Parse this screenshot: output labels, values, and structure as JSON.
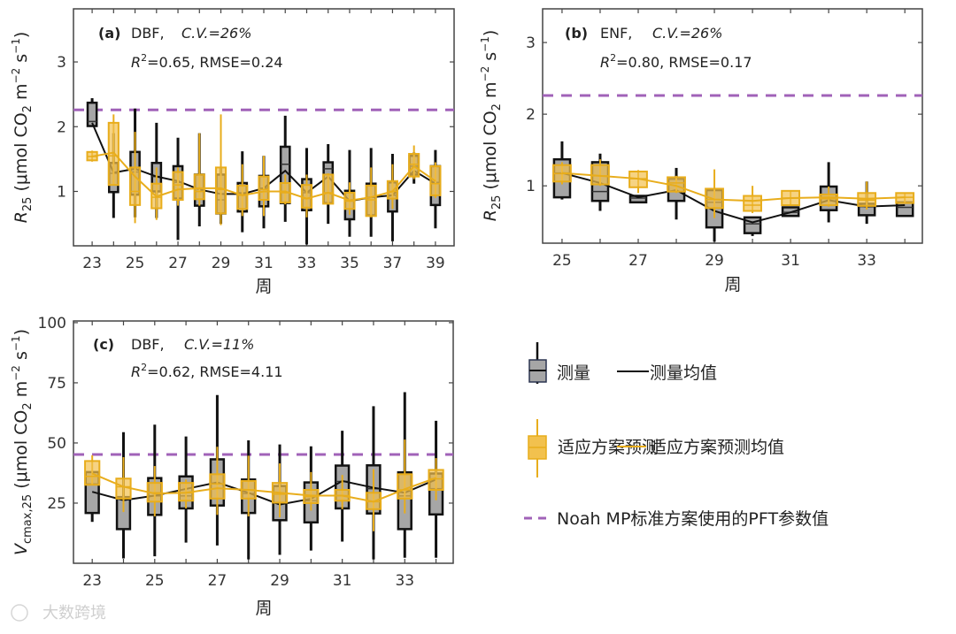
{
  "colors": {
    "measured_box": "#a6a6a6",
    "measured_line": "#111111",
    "predicted_box": "#f2c14e",
    "predicted_line": "#e8ad1c",
    "pft_dash": "#a062b8"
  },
  "watermark": "大数跨境",
  "legend": {
    "measured": "测量",
    "measured_mean": "测量均值",
    "predicted": "适应方案预测",
    "predicted_mean": "适应方案预测均值",
    "pft": "Noah MP标准方案使用的PFT参数值"
  },
  "chart_data": [
    {
      "id": "a",
      "type": "box",
      "panel_label": "(a)",
      "pft_type": "DBF,",
      "cv": "C.V.=26%",
      "r2_label": "R",
      "r2_sup": "2",
      "stats": "=0.65, RMSE=0.24",
      "xlabel": "周",
      "ylabel": {
        "var": "R",
        "sub": "25",
        "unit": " (μmol CO",
        "unit_sub": "2",
        "m": " m",
        "m_sup": "−2",
        "s": " s",
        "s_sup": "−1",
        "close": ")"
      },
      "xlim": [
        22.13,
        39.87
      ],
      "ylim": [
        0.16,
        3.82
      ],
      "xticks": [
        23,
        25,
        27,
        29,
        31,
        33,
        35,
        37,
        39
      ],
      "yticks": [
        1,
        2,
        3
      ],
      "pft_value": 2.26,
      "weeks": [
        23,
        24,
        25,
        26,
        27,
        28,
        29,
        30,
        31,
        32,
        33,
        34,
        35,
        36,
        37,
        38,
        39
      ],
      "measured": [
        [
          2.01,
          2.01,
          2.08,
          2.37,
          2.44,
          2.06
        ],
        [
          0.59,
          0.99,
          1.28,
          1.44,
          1.9,
          1.29
        ],
        [
          0.6,
          0.95,
          1.3,
          1.61,
          2.28,
          1.35
        ],
        [
          0.59,
          1.0,
          1.23,
          1.44,
          2.06,
          1.23
        ],
        [
          0.25,
          0.89,
          1.14,
          1.39,
          1.83,
          1.16
        ],
        [
          0.46,
          0.78,
          1.0,
          1.26,
          1.9,
          1.03
        ],
        [
          0.5,
          0.66,
          0.87,
          1.26,
          1.37,
          0.96
        ],
        [
          0.37,
          0.69,
          0.98,
          1.13,
          1.62,
          0.96
        ],
        [
          0.43,
          0.77,
          1.05,
          1.24,
          1.55,
          1.05
        ],
        [
          0.53,
          0.82,
          1.42,
          1.69,
          2.17,
          1.32
        ],
        [
          0.18,
          0.71,
          0.98,
          1.19,
          1.67,
          0.98
        ],
        [
          0.5,
          0.82,
          1.35,
          1.45,
          1.73,
          1.23
        ],
        [
          0.3,
          0.57,
          0.87,
          1.01,
          1.64,
          0.85
        ],
        [
          0.3,
          0.63,
          0.91,
          1.12,
          1.67,
          0.91
        ],
        [
          0.23,
          0.69,
          0.94,
          1.14,
          1.58,
          0.94
        ],
        [
          1.12,
          1.26,
          1.39,
          1.55,
          1.6,
          1.32
        ],
        [
          0.43,
          0.79,
          1.14,
          1.39,
          1.64,
          1.12
        ]
      ],
      "predicted": [
        [
          1.46,
          1.48,
          1.54,
          1.61,
          1.63,
          1.54
        ],
        [
          1.1,
          1.1,
          1.55,
          2.06,
          2.19,
          1.6
        ],
        [
          0.51,
          0.79,
          1.0,
          1.37,
          1.92,
          1.23
        ],
        [
          0.56,
          0.74,
          0.91,
          1.12,
          1.37,
          0.92
        ],
        [
          0.78,
          0.87,
          1.1,
          1.3,
          1.37,
          1.03
        ],
        [
          0.78,
          0.88,
          1.0,
          1.26,
          1.9,
          1.05
        ],
        [
          0.48,
          0.66,
          1.03,
          1.37,
          2.19,
          1.05
        ],
        [
          0.62,
          0.73,
          0.94,
          1.09,
          1.42,
          0.94
        ],
        [
          0.62,
          0.87,
          1.03,
          1.23,
          1.55,
          1.0
        ],
        [
          0.8,
          0.83,
          0.98,
          1.13,
          1.26,
          1.0
        ],
        [
          0.6,
          0.75,
          0.89,
          1.1,
          1.26,
          0.89
        ],
        [
          0.8,
          0.81,
          0.98,
          1.26,
          1.28,
          0.98
        ],
        [
          0.64,
          0.73,
          0.85,
          0.98,
          1.14,
          0.86
        ],
        [
          0.6,
          0.62,
          0.87,
          1.09,
          1.37,
          0.91
        ],
        [
          0.73,
          0.89,
          1.0,
          1.16,
          1.42,
          1.0
        ],
        [
          1.19,
          1.23,
          1.42,
          1.58,
          1.71,
          1.39
        ],
        [
          0.9,
          0.94,
          1.12,
          1.39,
          1.45,
          1.16
        ]
      ]
    },
    {
      "id": "b",
      "type": "box",
      "panel_label": "(b)",
      "pft_type": "ENF,",
      "cv": "C.V.=26%",
      "r2_label": "R",
      "r2_sup": "2",
      "stats": "=0.80, RMSE=0.17",
      "xlabel": "周",
      "ylabel": {
        "var": "R",
        "sub": "25",
        "unit": " (μmol CO",
        "unit_sub": "2",
        "m": " m",
        "m_sup": "−2",
        "s": " s",
        "s_sup": "−1",
        "close": ")"
      },
      "xlim": [
        24.49,
        34.46
      ],
      "ylim": [
        0.2,
        3.47
      ],
      "xticks": [
        25,
        27,
        29,
        31,
        33
      ],
      "yticks": [
        1,
        2,
        3
      ],
      "pft_value": 2.26,
      "weeks": [
        25,
        26,
        27,
        28,
        29,
        30,
        31,
        32,
        33,
        34
      ],
      "measured": [
        [
          0.81,
          0.84,
          1.18,
          1.37,
          1.62,
          1.18
        ],
        [
          0.65,
          0.79,
          0.92,
          1.33,
          1.45,
          1.04
        ],
        [
          0.77,
          0.77,
          0.83,
          0.86,
          0.86,
          0.84
        ],
        [
          0.53,
          0.79,
          1.1,
          1.1,
          1.25,
          0.94
        ],
        [
          0.22,
          0.42,
          0.77,
          0.94,
          0.94,
          0.65
        ],
        [
          0.3,
          0.34,
          0.47,
          0.56,
          0.56,
          0.49
        ],
        [
          0.58,
          0.58,
          0.63,
          0.7,
          0.7,
          0.63
        ],
        [
          0.49,
          0.66,
          0.82,
          0.99,
          1.33,
          0.8
        ],
        [
          0.47,
          0.59,
          0.71,
          0.75,
          1.06,
          0.71
        ],
        [
          0.57,
          0.58,
          0.7,
          0.77,
          0.77,
          0.73
        ]
      ],
      "predicted": [
        [
          1.02,
          1.06,
          1.17,
          1.29,
          1.33,
          1.18
        ],
        [
          1.0,
          1.02,
          1.14,
          1.29,
          1.37,
          1.14
        ],
        [
          0.9,
          0.98,
          1.1,
          1.2,
          1.22,
          1.1
        ],
        [
          0.9,
          0.92,
          1.04,
          1.12,
          1.14,
          1.0
        ],
        [
          0.55,
          0.69,
          0.81,
          0.96,
          1.23,
          0.81
        ],
        [
          0.62,
          0.65,
          0.73,
          0.86,
          1.0,
          0.79
        ],
        [
          0.73,
          0.73,
          0.83,
          0.93,
          0.93,
          0.83
        ],
        [
          0.71,
          0.73,
          0.82,
          0.88,
          0.99,
          0.84
        ],
        [
          0.67,
          0.72,
          0.8,
          0.9,
          1.06,
          0.82
        ],
        [
          0.76,
          0.76,
          0.84,
          0.9,
          0.9,
          0.84
        ]
      ]
    },
    {
      "id": "c",
      "type": "box",
      "panel_label": "(c)",
      "pft_type": "DBF,",
      "cv": "C.V.=11%",
      "r2_label": "R",
      "r2_sup": "2",
      "stats": "=0.62, RMSE=4.11",
      "xlabel": "周",
      "ylabel": {
        "var": "V",
        "sub": "cmax,25",
        "unit": " (μmol CO",
        "unit_sub": "2",
        "m": " m",
        "m_sup": "−2",
        "s": " s",
        "s_sup": "−1",
        "close": ")"
      },
      "xlim": [
        22.4,
        34.55
      ],
      "ylim": [
        0,
        100.7
      ],
      "xticks": [
        23,
        25,
        27,
        29,
        31,
        33
      ],
      "yticks": [
        25,
        50,
        75,
        100
      ],
      "pft_value": 45.2,
      "weeks": [
        23,
        24,
        25,
        26,
        27,
        28,
        29,
        30,
        31,
        32,
        33,
        34
      ],
      "measured": [
        [
          17.2,
          20.9,
          33,
          37.9,
          37.9,
          29.7
        ],
        [
          2,
          14.2,
          27,
          27.5,
          54.5,
          26.2
        ],
        [
          2.9,
          20.1,
          28,
          35.4,
          57.6,
          28.1
        ],
        [
          8.6,
          22.8,
          28,
          36.1,
          52.7,
          30.9
        ],
        [
          7.4,
          24,
          33,
          43.2,
          69.9,
          33.6
        ],
        [
          1.6,
          20.9,
          29,
          34.8,
          51.1,
          29.3
        ],
        [
          3.5,
          17.9,
          25,
          32.1,
          49.4,
          24.4
        ],
        [
          5.3,
          17,
          26,
          33.6,
          48.6,
          26.8
        ],
        [
          9,
          22.8,
          34,
          40.6,
          55.1,
          34.2
        ],
        [
          1.6,
          20.7,
          31,
          40.7,
          65.3,
          31.4
        ],
        [
          2.3,
          14.2,
          28,
          37.8,
          71.1,
          29.3
        ],
        [
          2.3,
          20.3,
          31,
          37.3,
          59.2,
          34.8
        ]
      ],
      "predicted": [
        [
          32.6,
          32.6,
          36.1,
          42.5,
          44.9,
          37.3
        ],
        [
          21.3,
          26.9,
          31.8,
          35.2,
          44.1,
          31.8
        ],
        [
          19.5,
          25.6,
          29.3,
          33.4,
          40.4,
          29
        ],
        [
          22.8,
          26,
          29.3,
          33.4,
          34.8,
          29.3
        ],
        [
          20.1,
          26.9,
          33,
          37,
          48.4,
          31.2
        ],
        [
          19.5,
          26.9,
          30.5,
          34.2,
          44.7,
          30.5
        ],
        [
          19.1,
          25.2,
          28.7,
          33.4,
          41.5,
          29.3
        ],
        [
          21.9,
          25,
          27.7,
          30.5,
          37.9,
          28.1
        ],
        [
          22.5,
          26,
          28.1,
          30.5,
          36.7,
          28.1
        ],
        [
          13.3,
          22.5,
          25.6,
          29.3,
          39.1,
          25.6
        ],
        [
          20.7,
          26.9,
          30.5,
          37,
          51.4,
          30.8
        ],
        [
          26.2,
          30.5,
          35.1,
          38.8,
          43.7,
          35.5
        ]
      ]
    }
  ]
}
